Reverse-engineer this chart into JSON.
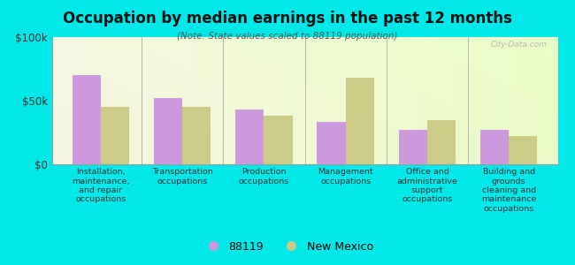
{
  "title": "Occupation by median earnings in the past 12 months",
  "subtitle": "(Note: State values scaled to 88119 population)",
  "background_color": "#00e8e8",
  "categories": [
    "Installation,\nmaintenance,\nand repair\noccupations",
    "Transportation\noccupations",
    "Production\noccupations",
    "Management\noccupations",
    "Office and\nadministrative\nsupport\noccupations",
    "Building and\ngrounds\ncleaning and\nmaintenance\noccupations"
  ],
  "values_88119": [
    70000,
    52000,
    43000,
    33000,
    27000,
    27000
  ],
  "values_nm": [
    45000,
    45000,
    38000,
    68000,
    35000,
    22000
  ],
  "color_88119": "#cc99dd",
  "color_nm": "#cccc88",
  "ylim": [
    0,
    100000
  ],
  "yticks": [
    0,
    50000,
    100000
  ],
  "ytick_labels": [
    "$0",
    "$50k",
    "$100k"
  ],
  "legend_88119": "88119",
  "legend_nm": "New Mexico",
  "bar_width": 0.35,
  "watermark": "City-Data.com"
}
